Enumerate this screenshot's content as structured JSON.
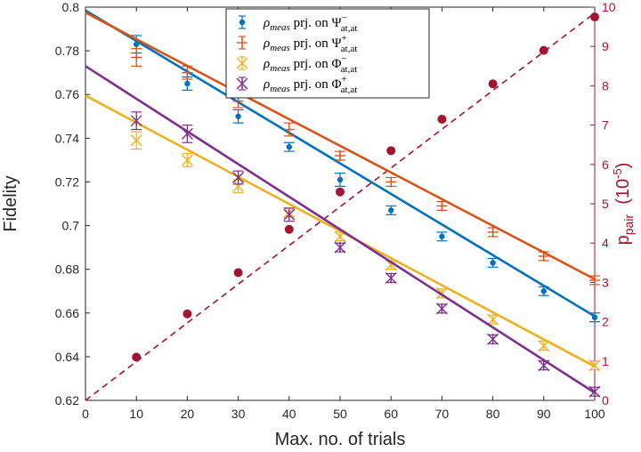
{
  "chart_data": {
    "type": "line",
    "title": "",
    "xlabel": "Max. no. of trials",
    "ylabel": "Fidelity",
    "ylabel_right": "p_pair (10^-5)",
    "ylabel_right_parts": {
      "p": "p",
      "sub": "pair",
      "open": "(10",
      "exp": "-5",
      "close": ")"
    },
    "xlim": [
      0,
      100
    ],
    "ylim": [
      0.62,
      0.8
    ],
    "ylim_right": [
      0,
      10
    ],
    "x_ticks": [
      0,
      10,
      20,
      30,
      40,
      50,
      60,
      70,
      80,
      90,
      100
    ],
    "x_tick_labels": [
      "0",
      "10",
      "20",
      "30",
      "40",
      "50",
      "60",
      "70",
      "80",
      "90",
      "100"
    ],
    "y_ticks": [
      0.62,
      0.64,
      0.66,
      0.68,
      0.7,
      0.72,
      0.74,
      0.76,
      0.78,
      0.8
    ],
    "y_tick_labels": [
      "0.62",
      "0.64",
      "0.66",
      "0.68",
      "0.7",
      "0.72",
      "0.74",
      "0.76",
      "0.78",
      "0.8"
    ],
    "y_right_ticks": [
      0,
      1,
      2,
      3,
      4,
      5,
      6,
      7,
      8,
      9,
      10
    ],
    "y_right_tick_labels": [
      "0",
      "1",
      "2",
      "3",
      "4",
      "5",
      "6",
      "7",
      "8",
      "9",
      "10"
    ],
    "x": [
      10,
      20,
      30,
      40,
      50,
      60,
      70,
      80,
      90,
      100
    ],
    "legend_position": "top-center",
    "series": [
      {
        "name": "Psi minus",
        "color": "#0072bd",
        "marker": "dot",
        "legend": {
          "rho": "ρ",
          "rho_sub": "meas",
          "mid": " prj. on ",
          "sym": "Ψ",
          "sup": "−",
          "sub": "at,at"
        },
        "values": [
          0.783,
          0.765,
          0.75,
          0.736,
          0.721,
          0.707,
          0.695,
          0.683,
          0.67,
          0.658
        ],
        "errors": [
          0.004,
          0.003,
          0.003,
          0.002,
          0.003,
          0.002,
          0.002,
          0.002,
          0.002,
          0.002
        ],
        "fit": [
          0.7985,
          0.6585
        ]
      },
      {
        "name": "Psi plus",
        "color": "#d95319",
        "marker": "plus",
        "legend": {
          "rho": "ρ",
          "rho_sub": "meas",
          "mid": " prj. on ",
          "sym": "Ψ",
          "sup": "+",
          "sub": "at,at"
        },
        "values": [
          0.777,
          0.77,
          0.757,
          0.744,
          0.732,
          0.72,
          0.709,
          0.697,
          0.686,
          0.675
        ],
        "errors": [
          0.004,
          0.003,
          0.003,
          0.003,
          0.002,
          0.002,
          0.002,
          0.002,
          0.002,
          0.002
        ],
        "fit": [
          0.7975,
          0.6755
        ]
      },
      {
        "name": "Phi minus",
        "color": "#edb120",
        "marker": "x",
        "legend": {
          "rho": "ρ",
          "rho_sub": "meas",
          "mid": " prj. on ",
          "sym": "Φ",
          "sup": "−",
          "sub": "at,at"
        },
        "values": [
          0.739,
          0.73,
          0.718,
          0.706,
          0.695,
          0.682,
          0.669,
          0.657,
          0.645,
          0.636
        ],
        "errors": [
          0.004,
          0.003,
          0.003,
          0.002,
          0.002,
          0.002,
          0.002,
          0.002,
          0.002,
          0.002
        ],
        "fit": [
          0.7595,
          0.6355
        ]
      },
      {
        "name": "Phi plus",
        "color": "#7e2f8e",
        "marker": "asterisk",
        "legend": {
          "rho": "ρ",
          "rho_sub": "meas",
          "mid": " prj. on ",
          "sym": "Φ",
          "sup": "+",
          "sub": "at,at"
        },
        "values": [
          0.748,
          0.742,
          0.722,
          0.705,
          0.69,
          0.676,
          0.662,
          0.648,
          0.636,
          0.624
        ],
        "errors": [
          0.004,
          0.004,
          0.003,
          0.003,
          0.002,
          0.002,
          0.002,
          0.002,
          0.002,
          0.002
        ],
        "fit": [
          0.773,
          0.6235
        ]
      }
    ],
    "p_pair": {
      "axis": "right",
      "color": "#a2142f",
      "x": [
        10,
        20,
        30,
        40,
        50,
        60,
        70,
        80,
        90,
        100
      ],
      "values": [
        1.1,
        2.2,
        3.25,
        4.35,
        5.3,
        6.35,
        7.15,
        8.05,
        8.9,
        9.75
      ],
      "fit_line": [
        [
          0,
          0
        ],
        [
          100,
          9.85
        ]
      ],
      "line_style": "dashed"
    }
  }
}
